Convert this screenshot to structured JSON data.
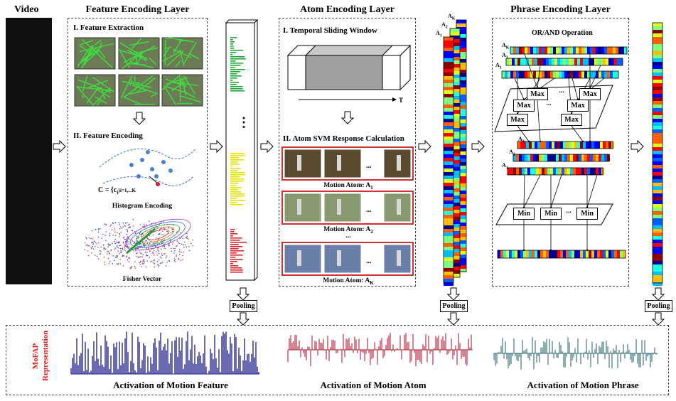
{
  "video_label": "Video",
  "feature_layer": {
    "title": "Feature Encoding Layer",
    "step1": "I. Feature Extraction",
    "step2": "II. Feature Encoding",
    "codebook_formula": "C = {c",
    "codebook_sub": "i",
    "codebook_range": "}i=1,...K",
    "histogram_caption": "Histogram Encoding",
    "fisher_caption": "Fisher Vector"
  },
  "atom_layer": {
    "title": "Atom Encoding Layer",
    "step1": "I. Temporal Sliding Window",
    "time_axis": "T",
    "step2": "II. Atom SVM Response Calculation",
    "atom1": "Motion Atom: A",
    "atom1_sub": "1",
    "atom2": "Motion Atom: A",
    "atom2_sub": "2",
    "atomk": "Motion Atom: A",
    "atomk_sub": "K",
    "ellipsis": "..."
  },
  "phrase_layer": {
    "title": "Phrase Encoding Layer",
    "operation": "OR/AND Operation",
    "max_label": "Max",
    "min_label": "Min",
    "ellipsis": "..."
  },
  "atom_stack_labels": [
    "A",
    "K",
    "A",
    "2",
    "A",
    "1"
  ],
  "pooling_label": "Pooling",
  "vertical_ellipsis": "⋮",
  "mofap": {
    "side_label_1": "MoFAP",
    "side_label_2": "Representation",
    "feature_activation": "Activation of Motion Feature",
    "atom_activation": "Activation of Motion Atom",
    "phrase_activation": "Activation of Motion Phrase"
  },
  "colors": {
    "feature_bars": "#1a1a8c",
    "atom_bars": "#b0203a",
    "phrase_bars": "#2f6b70",
    "green_hist": "#22a83a",
    "yellow_hist": "#e8e000",
    "red_hist": "#d8282f",
    "mofap_red": "#d82020"
  }
}
